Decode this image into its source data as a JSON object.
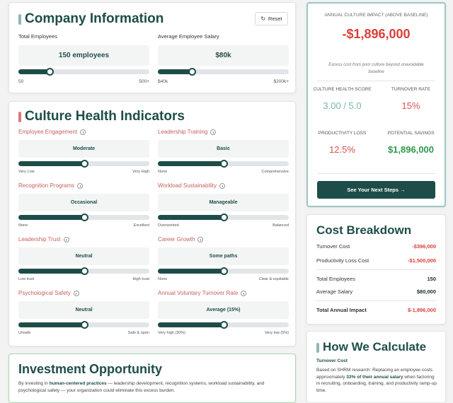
{
  "company_info": {
    "title": "Company Information",
    "reset": "Reset",
    "fields": [
      {
        "label": "Total Employees",
        "value": "150 employees",
        "min": "50",
        "max": "500+"
      },
      {
        "label": "Average Employee Salary",
        "value": "$80k",
        "min": "$40k",
        "max": "$200k+"
      }
    ]
  },
  "culture_health": {
    "title": "Culture Health Indicators",
    "indicators": [
      {
        "label": "Employee Engagement",
        "value": "Moderate",
        "min": "Very Low",
        "max": "Very High"
      },
      {
        "label": "Leadership Training",
        "value": "Basic",
        "min": "None",
        "max": "Comprehensive"
      },
      {
        "label": "Recognition Programs",
        "value": "Occasional",
        "min": "None",
        "max": "Excellent"
      },
      {
        "label": "Workload Sustainability",
        "value": "Manageable",
        "min": "Overworked",
        "max": "Balanced"
      },
      {
        "label": "Leadership Trust",
        "value": "Neutral",
        "min": "Low trust",
        "max": "High trust"
      },
      {
        "label": "Career Growth",
        "value": "Some paths",
        "min": "None",
        "max": "Clear & equitable"
      },
      {
        "label": "Psychological Safety",
        "value": "Neutral",
        "min": "Unsafe",
        "max": "Safe & open"
      },
      {
        "label": "Annual Voluntary Turnover Rate",
        "value": "Average (15%)",
        "min": "Very high (30%)",
        "max": "Very low (5%)"
      }
    ]
  },
  "investment": {
    "title": "Investment Opportunity",
    "text_parts": [
      "By investing in ",
      "human-centered practices",
      " — leadership development, recognition systems, workload sustainability, and psychological safety — your organization could eliminate this excess burden."
    ]
  },
  "impact": {
    "heading": "ANNUAL CULTURE IMPACT (ABOVE BASELINE)",
    "value": "-$1,896,000",
    "note": "Excess cost from poor culture beyond unavoidable baseline",
    "metrics": [
      {
        "label": "CULTURE HEALTH SCORE",
        "value": "3.00 / 5.0"
      },
      {
        "label": "TURNOVER RATE",
        "value": "15%"
      },
      {
        "label": "PRODUCTIVITY LOSS",
        "value": "12.5%"
      },
      {
        "label": "POTENTIAL SAVINGS",
        "value": "$1,896,000"
      }
    ],
    "button": "See Your Next Steps →"
  },
  "cost_breakdown": {
    "title": "Cost Breakdown",
    "rows": [
      {
        "label": "Turnover Cost",
        "value": "-$396,000"
      },
      {
        "label": "Productivity Loss Cost",
        "value": "-$1,500,000"
      },
      {
        "label": "Total Employees",
        "value": "150"
      },
      {
        "label": "Average Salary",
        "value": "$80,000"
      },
      {
        "label": "Total Annual Impact",
        "value": "$-1,896,000"
      }
    ]
  },
  "how_we_calculate": {
    "title": "How We Calculate",
    "subtitle": "Turnover Cost",
    "text_parts": [
      "Based on SHRM research: Replacing an employee costs approximately ",
      "33% of their annual salary",
      " when factoring in recruiting, onboarding, training, and productivity ramp-up time."
    ]
  }
}
